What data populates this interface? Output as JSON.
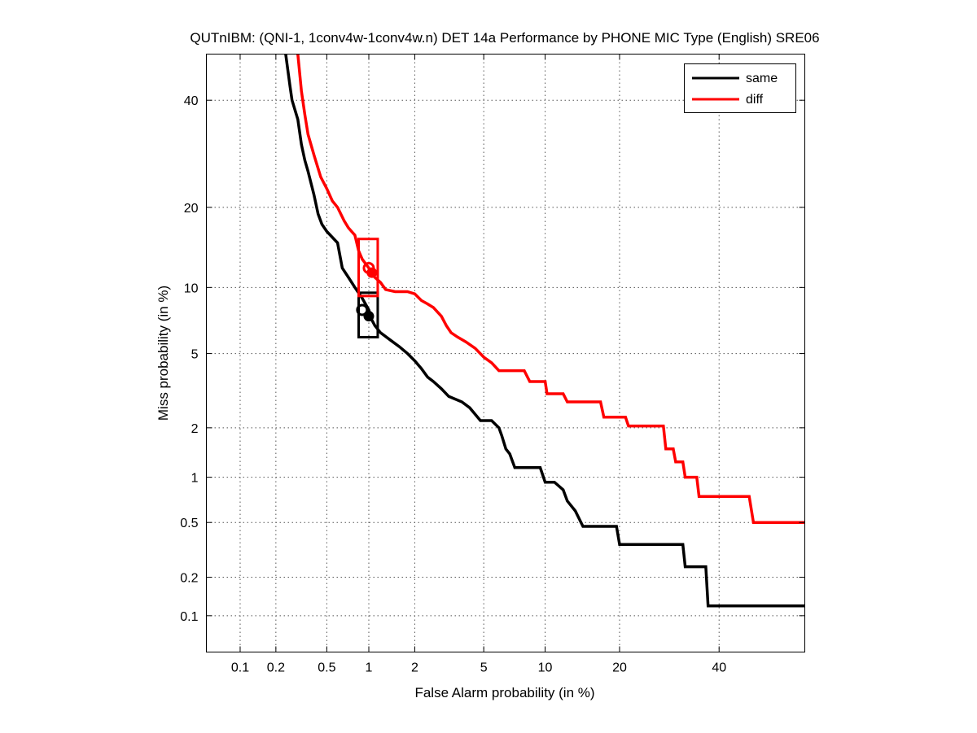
{
  "chart_data": {
    "type": "line",
    "title": "QUTnIBM: (QNI-1, 1conv4w-1conv4w.n) DET 14a Performance by PHONE MIC Type (English) SRE06",
    "xlabel": "False Alarm probability (in %)",
    "ylabel": "Miss probability (in %)",
    "x_scale": "probit",
    "y_scale": "probit",
    "xlim": [
      0.05,
      60
    ],
    "ylim": [
      0.05,
      50
    ],
    "x_ticks": [
      0.1,
      0.2,
      0.5,
      1,
      2,
      5,
      10,
      20,
      40
    ],
    "x_tick_labels": [
      "0.1",
      "0.2",
      "0.5",
      "1",
      "2",
      "5",
      "10",
      "20",
      "40"
    ],
    "y_ticks": [
      0.1,
      0.2,
      0.5,
      1,
      2,
      5,
      10,
      20,
      40
    ],
    "y_tick_labels": [
      "0.1",
      "0.2",
      "0.5",
      "1",
      "2",
      "5",
      "10",
      "20",
      "40"
    ],
    "grid": true,
    "legend_position": "top-right",
    "series": [
      {
        "name": "same",
        "color": "#000000",
        "points": [
          [
            0.24,
            50
          ],
          [
            0.26,
            43
          ],
          [
            0.27,
            40
          ],
          [
            0.3,
            36
          ],
          [
            0.32,
            31
          ],
          [
            0.34,
            28
          ],
          [
            0.36,
            26
          ],
          [
            0.4,
            22
          ],
          [
            0.43,
            19
          ],
          [
            0.46,
            17.5
          ],
          [
            0.5,
            16.5
          ],
          [
            0.6,
            15
          ],
          [
            0.65,
            12
          ],
          [
            0.72,
            11
          ],
          [
            0.8,
            10
          ],
          [
            0.9,
            9
          ],
          [
            1.0,
            8
          ],
          [
            1.05,
            7.2
          ],
          [
            1.1,
            6.8
          ],
          [
            1.2,
            6.3
          ],
          [
            1.4,
            5.8
          ],
          [
            1.6,
            5.4
          ],
          [
            1.8,
            5.0
          ],
          [
            2.0,
            4.6
          ],
          [
            2.2,
            4.2
          ],
          [
            2.4,
            3.8
          ],
          [
            2.6,
            3.6
          ],
          [
            2.9,
            3.3
          ],
          [
            3.2,
            3.0
          ],
          [
            3.8,
            2.8
          ],
          [
            4.2,
            2.6
          ],
          [
            4.8,
            2.2
          ],
          [
            5.5,
            2.2
          ],
          [
            6.0,
            2.0
          ],
          [
            6.2,
            1.8
          ],
          [
            6.5,
            1.5
          ],
          [
            6.8,
            1.4
          ],
          [
            7.2,
            1.15
          ],
          [
            9.5,
            1.15
          ],
          [
            10.0,
            0.93
          ],
          [
            11.0,
            0.93
          ],
          [
            12.0,
            0.83
          ],
          [
            12.5,
            0.7
          ],
          [
            13.5,
            0.6
          ],
          [
            14.5,
            0.47
          ],
          [
            19.5,
            0.47
          ],
          [
            20.0,
            0.35
          ],
          [
            32.0,
            0.35
          ],
          [
            32.5,
            0.24
          ],
          [
            37.0,
            0.24
          ],
          [
            37.5,
            0.12
          ],
          [
            60,
            0.12
          ]
        ],
        "operating_points": [
          {
            "x": 0.9,
            "y": 8.0
          },
          {
            "x": 1.0,
            "y": 7.5
          }
        ],
        "confidence_box": {
          "x": [
            0.85,
            1.15
          ],
          "y": [
            6.0,
            9.5
          ]
        }
      },
      {
        "name": "diff",
        "color": "#ff0000",
        "points": [
          [
            0.3,
            50
          ],
          [
            0.32,
            42
          ],
          [
            0.34,
            37
          ],
          [
            0.36,
            33
          ],
          [
            0.4,
            29
          ],
          [
            0.45,
            25
          ],
          [
            0.5,
            23
          ],
          [
            0.55,
            21
          ],
          [
            0.6,
            20
          ],
          [
            0.67,
            18
          ],
          [
            0.72,
            17
          ],
          [
            0.8,
            16
          ],
          [
            0.85,
            14
          ],
          [
            0.9,
            13
          ],
          [
            1.0,
            12
          ],
          [
            1.1,
            11
          ],
          [
            1.2,
            10.5
          ],
          [
            1.3,
            9.8
          ],
          [
            1.5,
            9.6
          ],
          [
            1.8,
            9.6
          ],
          [
            2.0,
            9.4
          ],
          [
            2.2,
            8.8
          ],
          [
            2.4,
            8.5
          ],
          [
            2.6,
            8.2
          ],
          [
            2.9,
            7.5
          ],
          [
            3.1,
            6.8
          ],
          [
            3.3,
            6.3
          ],
          [
            3.6,
            6.0
          ],
          [
            4.0,
            5.7
          ],
          [
            4.5,
            5.3
          ],
          [
            5.0,
            4.8
          ],
          [
            5.5,
            4.5
          ],
          [
            6.0,
            4.1
          ],
          [
            8.0,
            4.1
          ],
          [
            8.5,
            3.6
          ],
          [
            10.0,
            3.6
          ],
          [
            10.2,
            3.1
          ],
          [
            12.0,
            3.1
          ],
          [
            12.5,
            2.8
          ],
          [
            17.0,
            2.8
          ],
          [
            17.5,
            2.3
          ],
          [
            21.0,
            2.3
          ],
          [
            21.5,
            2.05
          ],
          [
            28.0,
            2.05
          ],
          [
            28.5,
            1.5
          ],
          [
            30.0,
            1.5
          ],
          [
            30.5,
            1.25
          ],
          [
            32.0,
            1.25
          ],
          [
            32.5,
            1.0
          ],
          [
            35.0,
            1.0
          ],
          [
            35.5,
            0.75
          ],
          [
            47.0,
            0.75
          ],
          [
            48.0,
            0.5
          ],
          [
            60,
            0.5
          ]
        ],
        "operating_points": [
          {
            "x": 1.0,
            "y": 12.0
          },
          {
            "x": 1.05,
            "y": 11.5
          }
        ],
        "confidence_box": {
          "x": [
            0.85,
            1.15
          ],
          "y": [
            9.2,
            15.5
          ]
        }
      }
    ]
  }
}
